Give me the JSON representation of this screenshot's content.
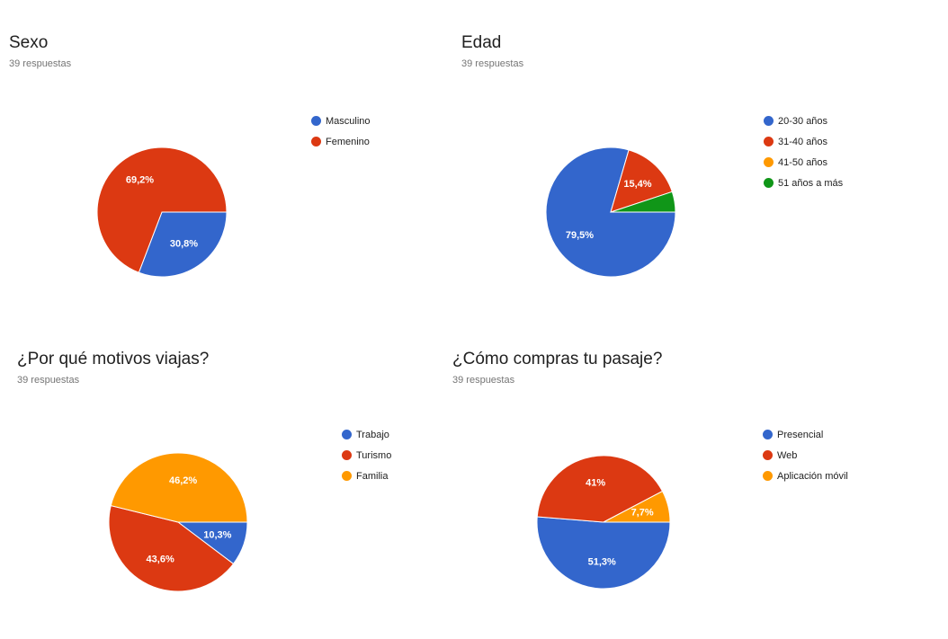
{
  "chart_data": [
    {
      "type": "pie",
      "title": "Sexo",
      "subtitle": "39 respuestas",
      "categories": [
        "Masculino",
        "Femenino"
      ],
      "values": [
        30.8,
        69.2
      ],
      "labels": [
        "30,8%",
        "69,2%"
      ],
      "colors": [
        "#3366cc",
        "#dc3912"
      ],
      "legend": "right"
    },
    {
      "type": "pie",
      "title": "Edad",
      "subtitle": "39 respuestas",
      "categories": [
        "20-30 años",
        "31-40 años",
        "41-50 años",
        "51 años a más"
      ],
      "values": [
        79.5,
        15.4,
        0,
        5.1
      ],
      "labels": [
        "79,5%",
        "15,4%",
        "",
        ""
      ],
      "colors": [
        "#3366cc",
        "#dc3912",
        "#ff9900",
        "#109618"
      ],
      "legend": "right"
    },
    {
      "type": "pie",
      "title": "¿Por qué motivos viajas?",
      "subtitle": "39 respuestas",
      "categories": [
        "Trabajo",
        "Turismo",
        "Familia"
      ],
      "values": [
        10.3,
        43.6,
        46.2
      ],
      "labels": [
        "10,3%",
        "43,6%",
        "46,2%"
      ],
      "colors": [
        "#3366cc",
        "#dc3912",
        "#ff9900"
      ],
      "legend": "right"
    },
    {
      "type": "pie",
      "title": "¿Cómo compras tu pasaje?",
      "subtitle": "39 respuestas",
      "categories": [
        "Presencial",
        "Web",
        "Aplicación móvil"
      ],
      "values": [
        51.3,
        41,
        7.7
      ],
      "labels": [
        "51,3%",
        "41%",
        "7,7%"
      ],
      "colors": [
        "#3366cc",
        "#dc3912",
        "#ff9900"
      ],
      "legend": "right"
    }
  ]
}
